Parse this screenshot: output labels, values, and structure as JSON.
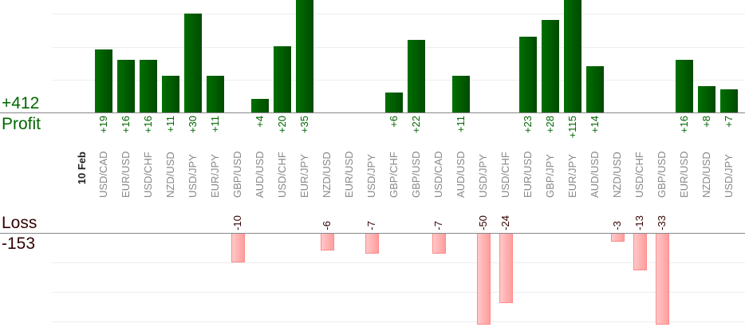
{
  "chart_data": {
    "type": "bar",
    "date_label": "10 Feb",
    "profit_total_label": "+412",
    "profit_label": "Profit",
    "loss_label": "Loss",
    "loss_total_label": "-153",
    "categories": [
      "USD/CAD",
      "EUR/USD",
      "USD/CHF",
      "NZD/USD",
      "USD/JPY",
      "EUR/JPY",
      "GBP/USD",
      "AUD/USD",
      "USD/CHF",
      "EUR/JPY",
      "NZD/USD",
      "EUR/USD",
      "USD/JPY",
      "GBP/CHF",
      "GBP/USD",
      "USD/CAD",
      "AUD/USD",
      "USD/JPY",
      "USD/CHF",
      "EUR/USD",
      "GBP/JPY",
      "EUR/JPY",
      "AUD/USD",
      "NZD/USD",
      "USD/CHF",
      "GBP/USD",
      "EUR/USD",
      "NZD/USD",
      "USD/JPY"
    ],
    "values": [
      19,
      16,
      16,
      11,
      30,
      11,
      -10,
      4,
      20,
      35,
      -6,
      null,
      -7,
      6,
      22,
      -7,
      11,
      -50,
      -24,
      23,
      28,
      115,
      14,
      -3,
      -13,
      -33,
      16,
      8,
      7
    ],
    "value_labels": [
      "+19",
      "+16",
      "+16",
      "+11",
      "+30",
      "+11",
      "-10",
      "+4",
      "+20",
      "+35",
      "-6",
      "",
      "-7",
      "+6",
      "+22",
      "-7",
      "+11",
      "-50",
      "-24",
      "+23",
      "+28",
      "+115",
      "+14",
      "-3",
      "-13",
      "-33",
      "+16",
      "+8",
      "+7"
    ],
    "colors": {
      "profit": "#006600",
      "loss": "#ffaaaa",
      "profit_text": "#006600",
      "loss_text": "#330000",
      "category_text": "#888888"
    }
  }
}
